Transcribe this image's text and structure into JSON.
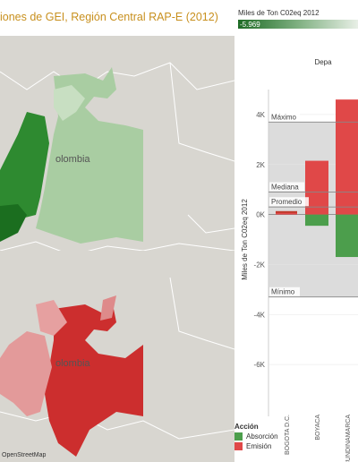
{
  "title": "iones de GEI, Región Central RAP-E (2012)",
  "color_legend": {
    "title": "Miles de Ton C02eq 2012",
    "min_label": "-5.969",
    "colors": [
      "#1e6b25",
      "#e8efe6"
    ]
  },
  "map": {
    "country_label_top": "olombia",
    "country_label_bottom": "olombia",
    "attribution": "OpenStreetMap"
  },
  "chart_data": {
    "type": "bar",
    "title": "Depa",
    "ylabel": "Miles de Ton C02eq 2012",
    "ylim": [
      -7000,
      5000
    ],
    "yticks": [
      "4K",
      "2K",
      "0K",
      "-2K",
      "-4K",
      "-6K"
    ],
    "categories": [
      "BOGOTA D.C.",
      "BOYACA",
      "CUNDINAMARCA"
    ],
    "series": [
      {
        "name": "Absorción",
        "color": "#4c9e4c",
        "values": [
          0,
          -450,
          -1700
        ]
      },
      {
        "name": "Emisión",
        "color": "#e04848",
        "values": [
          100,
          2150,
          4600
        ]
      }
    ],
    "reference_lines": [
      {
        "label": "Máximo",
        "value": 3700
      },
      {
        "label": "Mediana",
        "value": 900
      },
      {
        "label": "Promedio",
        "value": 300
      },
      {
        "label": "Mínimo",
        "value": -3300
      }
    ]
  },
  "legend_accion": {
    "title": "Acción",
    "items": [
      {
        "label": "Absorción",
        "color": "#4c9e4c"
      },
      {
        "label": "Emisión",
        "color": "#e04848"
      }
    ]
  }
}
